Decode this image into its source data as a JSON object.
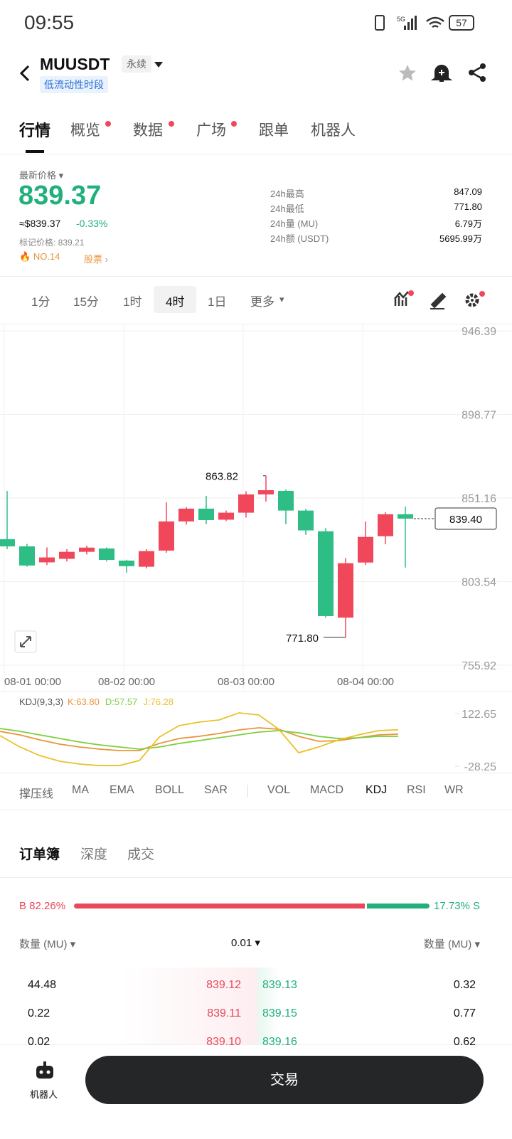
{
  "status": {
    "time": "09:55",
    "battery": "57",
    "network": "5G"
  },
  "header": {
    "symbol": "MUUSDT",
    "tag": "永续",
    "notice": "低流动性时段"
  },
  "tabs": [
    "行情",
    "概览",
    "数据",
    "广场",
    "跟单",
    "机器人"
  ],
  "price": {
    "label": "最新价格",
    "last": "839.37",
    "usd": "≈$839.37",
    "change": "-0.33%",
    "mark": "标记价格: 839.21",
    "rank": "NO.14",
    "sector": "股票"
  },
  "stats": [
    {
      "label": "24h最高",
      "value": "847.09"
    },
    {
      "label": "24h最低",
      "value": "771.80"
    },
    {
      "label": "24h量 (MU)",
      "value": "6.79万"
    },
    {
      "label": "24h额 (USDT)",
      "value": "5695.99万"
    }
  ],
  "intervals": [
    "1分",
    "15分",
    "1时",
    "4时",
    "1日",
    "更多"
  ],
  "chart_data": [
    {
      "type": "candlestick",
      "up_color": "#f0475b",
      "down_color": "#2ebd85",
      "categories": [
        "08-01 00:00",
        null,
        null,
        null,
        null,
        null,
        "08-02 00:00",
        null,
        null,
        null,
        null,
        null,
        "08-03 00:00",
        null,
        null,
        null,
        null,
        null,
        "08-04 00:00",
        null,
        null
      ],
      "open": [
        827.7,
        823.6,
        814.5,
        816.5,
        820.5,
        822.4,
        815.5,
        812.0,
        821.2,
        837.8,
        845.1,
        838.8,
        842.8,
        853.2,
        855.2,
        844.0,
        832.2,
        783.0,
        814.4,
        829.4,
        841.9
      ],
      "high": [
        855.2,
        825,
        823,
        822,
        824,
        823,
        816,
        822,
        848.7,
        846,
        852.4,
        844,
        855,
        863.82,
        856,
        845,
        834,
        817,
        837.8,
        843,
        846.3
      ],
      "low": [
        822,
        812,
        813,
        815,
        819,
        815,
        808.6,
        811,
        820,
        836,
        836.2,
        838,
        840,
        849.1,
        836.2,
        830.1,
        783,
        771.8,
        813,
        824.8,
        811.5
      ],
      "close": [
        823.6,
        812.7,
        817.3,
        820.5,
        822.9,
        815.9,
        812.3,
        820.9,
        837.8,
        845.1,
        838.6,
        842.8,
        853.2,
        855.6,
        844.0,
        832.7,
        783.9,
        814.0,
        829.0,
        841.9,
        839.4
      ],
      "ylim": [
        755.92,
        946.39
      ],
      "yticks": [
        946.39,
        898.77,
        851.16,
        803.54,
        755.92
      ],
      "grid": true,
      "annotations": {
        "max": 863.82,
        "min": {
          "value": 771.8,
          "label": "771.80"
        },
        "last": {
          "value": 839.4,
          "label": "839.40"
        }
      }
    },
    {
      "type": "line",
      "title": "KDJ(9,3,3)",
      "legend_labels": [
        "K:63.80",
        "D:57.57",
        "J:76.28"
      ],
      "series": [
        {
          "name": "K",
          "color": "#e8953a",
          "values": [
            71.6,
            61.4,
            47.2,
            34.9,
            26.8,
            20.7,
            16.6,
            16.6,
            37,
            51.2,
            57.4,
            65.5,
            75.7,
            81.8,
            77.7,
            57.4,
            43.1,
            45.2,
            53.3,
            61.4,
            63.8
          ]
        },
        {
          "name": "D",
          "color": "#7ccf3a",
          "values": [
            79.8,
            71.6,
            61.4,
            51.2,
            41.0,
            32.9,
            26.8,
            20.7,
            26.8,
            37.0,
            45.1,
            53.3,
            61.4,
            69.6,
            73.7,
            67.5,
            57.4,
            51.2,
            53.3,
            57.4,
            57.57
          ]
        },
        {
          "name": "J",
          "color": "#e8c22a",
          "values": [
            59.4,
            26.8,
            2.3,
            -14,
            -22.2,
            -26.3,
            -26.3,
            -12,
            55.3,
            88,
            98.2,
            104.3,
            124.7,
            118.6,
            77.7,
            10.4,
            26.8,
            47.2,
            61.4,
            73.7,
            76.28
          ]
        }
      ],
      "ylim": [
        -28.25,
        122.65
      ],
      "yticks": [
        122.65,
        -28.25
      ]
    }
  ],
  "indicators": [
    "撑压线",
    "MA",
    "EMA",
    "BOLL",
    "SAR",
    "VOL",
    "MACD",
    "KDJ",
    "RSI",
    "WR"
  ],
  "orderbook": {
    "tabs": [
      "订单簿",
      "深度",
      "成交"
    ],
    "buy_pct": 82.26,
    "buy_label": "B 82.26%",
    "sell_pct": 17.73,
    "sell_label": "17.73% S",
    "columns": [
      "数量 (MU)",
      "0.01",
      "数量 (MU)"
    ],
    "rows": [
      [
        "44.48",
        "839.12",
        "839.13",
        "0.32"
      ],
      [
        "0.22",
        "839.11",
        "839.15",
        "0.77"
      ],
      [
        "0.02",
        "839.10",
        "839.16",
        "0.62"
      ]
    ]
  },
  "footer": {
    "robot": "机器人",
    "trade": "交易"
  }
}
